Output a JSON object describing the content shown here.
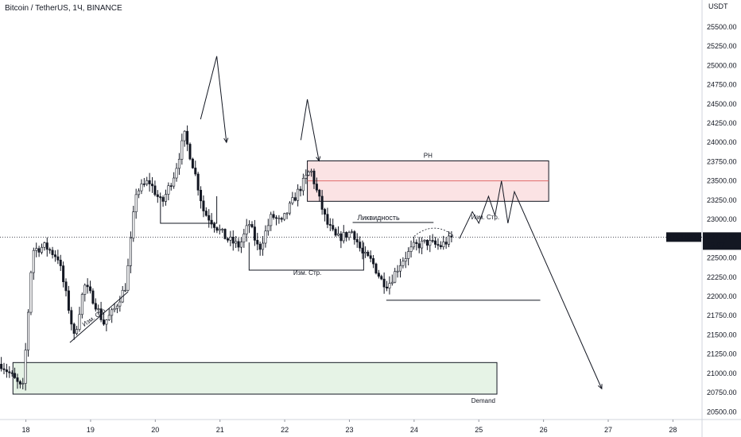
{
  "header": {
    "title": "Bitcoin / TetherUS, 1Ч, BINANCE"
  },
  "chart_data": {
    "type": "candlestick",
    "symbol": "BTCUSDT",
    "exchange": "BINANCE",
    "timeframe": "1Ч",
    "currency_label": "USDT",
    "ylim": [
      20400,
      25850
    ],
    "xlim": [
      17.6,
      28.45
    ],
    "y_ticks": [
      "20500.00",
      "20750.00",
      "21000.00",
      "21250.00",
      "21500.00",
      "21750.00",
      "22000.00",
      "22250.00",
      "22500.00",
      "22750.00",
      "23000.00",
      "23250.00",
      "23500.00",
      "23750.00",
      "24000.00",
      "24250.00",
      "24500.00",
      "24750.00",
      "25000.00",
      "25250.00",
      "25500.00"
    ],
    "x_ticks": [
      {
        "v": 18,
        "label": "18"
      },
      {
        "v": 19,
        "label": "19"
      },
      {
        "v": 20,
        "label": "20"
      },
      {
        "v": 21,
        "label": "21"
      },
      {
        "v": 22,
        "label": "22"
      },
      {
        "v": 23,
        "label": "23"
      },
      {
        "v": 24,
        "label": "24"
      },
      {
        "v": 25,
        "label": "25"
      },
      {
        "v": 26,
        "label": "26"
      },
      {
        "v": 27,
        "label": "27"
      },
      {
        "v": 28,
        "label": "28"
      }
    ],
    "last_price": {
      "label": "BTCUSDT",
      "value": 22770,
      "value_label": "22770.00",
      "countdown": "15:07"
    },
    "anchors": [
      [
        17.62,
        21120
      ],
      [
        17.8,
        20950
      ],
      [
        17.95,
        20780
      ],
      [
        18.0,
        21350
      ],
      [
        18.1,
        22600
      ],
      [
        18.3,
        22650
      ],
      [
        18.5,
        22500
      ],
      [
        18.65,
        21900
      ],
      [
        18.75,
        21450
      ],
      [
        18.9,
        22150
      ],
      [
        19.05,
        21950
      ],
      [
        19.2,
        21650
      ],
      [
        19.35,
        21800
      ],
      [
        19.55,
        22150
      ],
      [
        19.7,
        23350
      ],
      [
        19.9,
        23500
      ],
      [
        20.1,
        23200
      ],
      [
        20.3,
        23600
      ],
      [
        20.45,
        24100
      ],
      [
        20.6,
        23650
      ],
      [
        20.75,
        23100
      ],
      [
        20.95,
        22900
      ],
      [
        21.1,
        22750
      ],
      [
        21.3,
        22650
      ],
      [
        21.45,
        22950
      ],
      [
        21.6,
        22600
      ],
      [
        21.8,
        23050
      ],
      [
        21.95,
        22950
      ],
      [
        22.1,
        23200
      ],
      [
        22.3,
        23500
      ],
      [
        22.4,
        23650
      ],
      [
        22.5,
        23350
      ],
      [
        22.65,
        22950
      ],
      [
        22.8,
        22750
      ],
      [
        22.95,
        22800
      ],
      [
        23.05,
        22850
      ],
      [
        23.2,
        22550
      ],
      [
        23.35,
        22450
      ],
      [
        23.5,
        22200
      ],
      [
        23.6,
        22150
      ],
      [
        23.8,
        22450
      ],
      [
        24.0,
        22650
      ],
      [
        24.2,
        22700
      ],
      [
        24.4,
        22650
      ],
      [
        24.6,
        22770
      ]
    ],
    "zones": [
      {
        "name": "PH",
        "x0": 22.35,
        "x1": 26.08,
        "y0": 23235,
        "y1": 23760,
        "mid": 23500
      },
      {
        "name": "Demand",
        "x0": 17.8,
        "x1": 25.28,
        "y0": 20730,
        "y1": 21140
      }
    ],
    "annotations": {
      "ph": "PH",
      "demand": "Demand",
      "liquidity": "Ликвидность",
      "structure_change_1": "Изм. Стр.",
      "structure_change_2": "Изм. Стр.",
      "structure_change_3": "Изм. Стр."
    },
    "lines": [
      {
        "kind": "bracket",
        "x0": 20.08,
        "x1": 20.95,
        "y0": 23300,
        "y1": 22950
      },
      {
        "kind": "bracket",
        "x0": 21.45,
        "x1": 23.22,
        "y0": 22700,
        "y1": 22340
      },
      {
        "kind": "hline",
        "x0": 23.57,
        "x1": 25.95,
        "y": 21950
      },
      {
        "kind": "hline",
        "x0": 23.05,
        "x1": 24.3,
        "y": 22960
      },
      {
        "kind": "trend",
        "x0": 18.68,
        "y0": 21400,
        "x1": 19.58,
        "y1": 22060
      },
      {
        "kind": "path",
        "pts": [
          [
            20.7,
            24300
          ],
          [
            20.95,
            25120
          ],
          [
            21.1,
            24000
          ]
        ]
      },
      {
        "kind": "path",
        "pts": [
          [
            22.25,
            24030
          ],
          [
            22.35,
            24560
          ],
          [
            22.53,
            23760
          ]
        ]
      },
      {
        "kind": "path",
        "pts": [
          [
            24.7,
            22750
          ],
          [
            24.9,
            23100
          ],
          [
            25.0,
            22950
          ],
          [
            25.15,
            23300
          ],
          [
            25.25,
            23050
          ],
          [
            25.35,
            23500
          ],
          [
            25.45,
            22950
          ],
          [
            25.55,
            23360
          ],
          [
            26.9,
            20800
          ]
        ]
      },
      {
        "kind": "arc",
        "x0": 24.0,
        "x1": 24.62,
        "y": 22780,
        "h": 110
      }
    ]
  }
}
